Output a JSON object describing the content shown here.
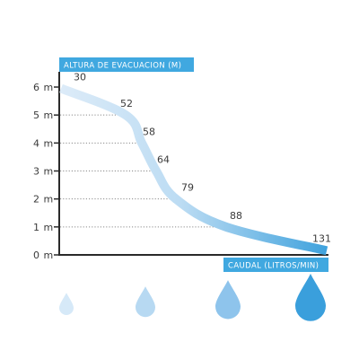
{
  "chart_data": {
    "type": "line",
    "ylabel": "ALTURA DE EVACUACION (M)",
    "xlabel": "CAUDAL (LITROS/MIN)",
    "y_ticks": [
      "0 m",
      "1 m",
      "2 m",
      "3 m",
      "4 m",
      "5 m",
      "6 m"
    ],
    "ylim": [
      0,
      6
    ],
    "grid": "dotted horizontal guides to curve",
    "points": [
      {
        "y": 5.95,
        "label": "30"
      },
      {
        "y": 5,
        "label": "52"
      },
      {
        "y": 4,
        "label": "58"
      },
      {
        "y": 3,
        "label": "64"
      },
      {
        "y": 2,
        "label": "79"
      },
      {
        "y": 1,
        "label": "88"
      },
      {
        "y": 0.15,
        "label": "131"
      }
    ],
    "legend_icons": [
      {
        "name": "small-drop-icon",
        "color": "#d6e9f8"
      },
      {
        "name": "medium-drop-icon",
        "color": "#b7d9f2"
      },
      {
        "name": "large-drop-icon",
        "color": "#8ec4ec"
      },
      {
        "name": "xlarge-drop-icon",
        "color": "#3a9fdc"
      }
    ],
    "colors": {
      "curve_start": "#dcebf8",
      "curve_end": "#3fa2dd",
      "title_bg": "#40a8e0",
      "axis": "#2a2a2a"
    }
  }
}
